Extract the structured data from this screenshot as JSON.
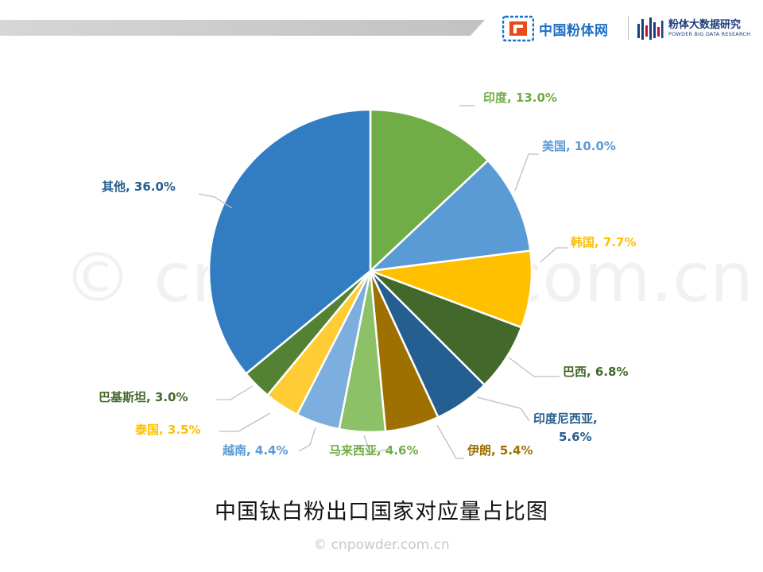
{
  "header": {
    "brand_cn_name": "中国粉体网",
    "brand_big_name": "粉体大数据研究",
    "brand_big_en": "POWDER BIG DATA RESEARCH"
  },
  "watermark": "© cnpowder.com.cn",
  "footer": {
    "copyright": "© cnpowder.com.cn"
  },
  "chart_data": {
    "type": "pie",
    "title": "中国钛白粉出口国家对应量占比图",
    "start_angle_deg": 0,
    "direction": "clockwise",
    "slices": [
      {
        "label": "印度",
        "value": 13.0,
        "text": "印度, 13.0%",
        "color": "#70ad47"
      },
      {
        "label": "美国",
        "value": 10.0,
        "text": "美国, 10.0%",
        "color": "#5b9bd5"
      },
      {
        "label": "韩国",
        "value": 7.7,
        "text": "韩国, 7.7%",
        "color": "#ffc000"
      },
      {
        "label": "巴西",
        "value": 6.8,
        "text": "巴西, 6.8%",
        "color": "#43682b"
      },
      {
        "label": "印度尼西亚",
        "value": 5.6,
        "text": "印度尼西亚,\n5.6%",
        "color": "#255e91"
      },
      {
        "label": "伊朗",
        "value": 5.4,
        "text": "伊朗, 5.4%",
        "color": "#9e7000"
      },
      {
        "label": "马来西亚",
        "value": 4.6,
        "text": "马来西亚, 4.6%",
        "color": "#8cc168"
      },
      {
        "label": "越南",
        "value": 4.4,
        "text": "越南, 4.4%",
        "color": "#7cafdd"
      },
      {
        "label": "泰国",
        "value": 3.5,
        "text": "泰国, 3.5%",
        "color": "#ffcd33"
      },
      {
        "label": "巴基斯坦",
        "value": 3.0,
        "text": "巴基斯坦, 3.0%",
        "color": "#548235"
      },
      {
        "label": "其他",
        "value": 36.0,
        "text": "其他, 36.0%",
        "color": "#327dc2"
      }
    ],
    "label_colors": {
      "印度": "#70ad47",
      "美国": "#5b9bd5",
      "韩国": "#ffc000",
      "巴西": "#43682b",
      "印度尼西亚": "#255e91",
      "伊朗": "#9e7000",
      "马来西亚": "#70ad47",
      "越南": "#5b9bd5",
      "泰国": "#ffc000",
      "巴基斯坦": "#43682b",
      "其他": "#255e91"
    }
  }
}
